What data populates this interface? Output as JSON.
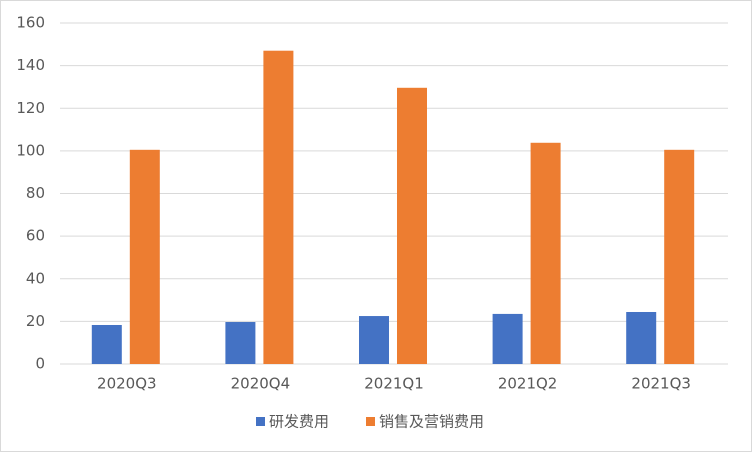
{
  "chart_data": {
    "type": "bar",
    "categories": [
      "2020Q3",
      "2020Q4",
      "2021Q1",
      "2021Q2",
      "2021Q3"
    ],
    "series": [
      {
        "name": "研发费用",
        "color": "#4472c4",
        "values": [
          18.3,
          19.7,
          22.5,
          23.5,
          24.4
        ]
      },
      {
        "name": "销售及营销费用",
        "color": "#ed7d31",
        "values": [
          100.5,
          147,
          129.6,
          103.8,
          100.5
        ]
      }
    ],
    "ylim": [
      0,
      160
    ],
    "yticks": [
      0,
      20,
      40,
      60,
      80,
      100,
      120,
      140,
      160
    ],
    "grid": true,
    "legend": "bottom"
  }
}
